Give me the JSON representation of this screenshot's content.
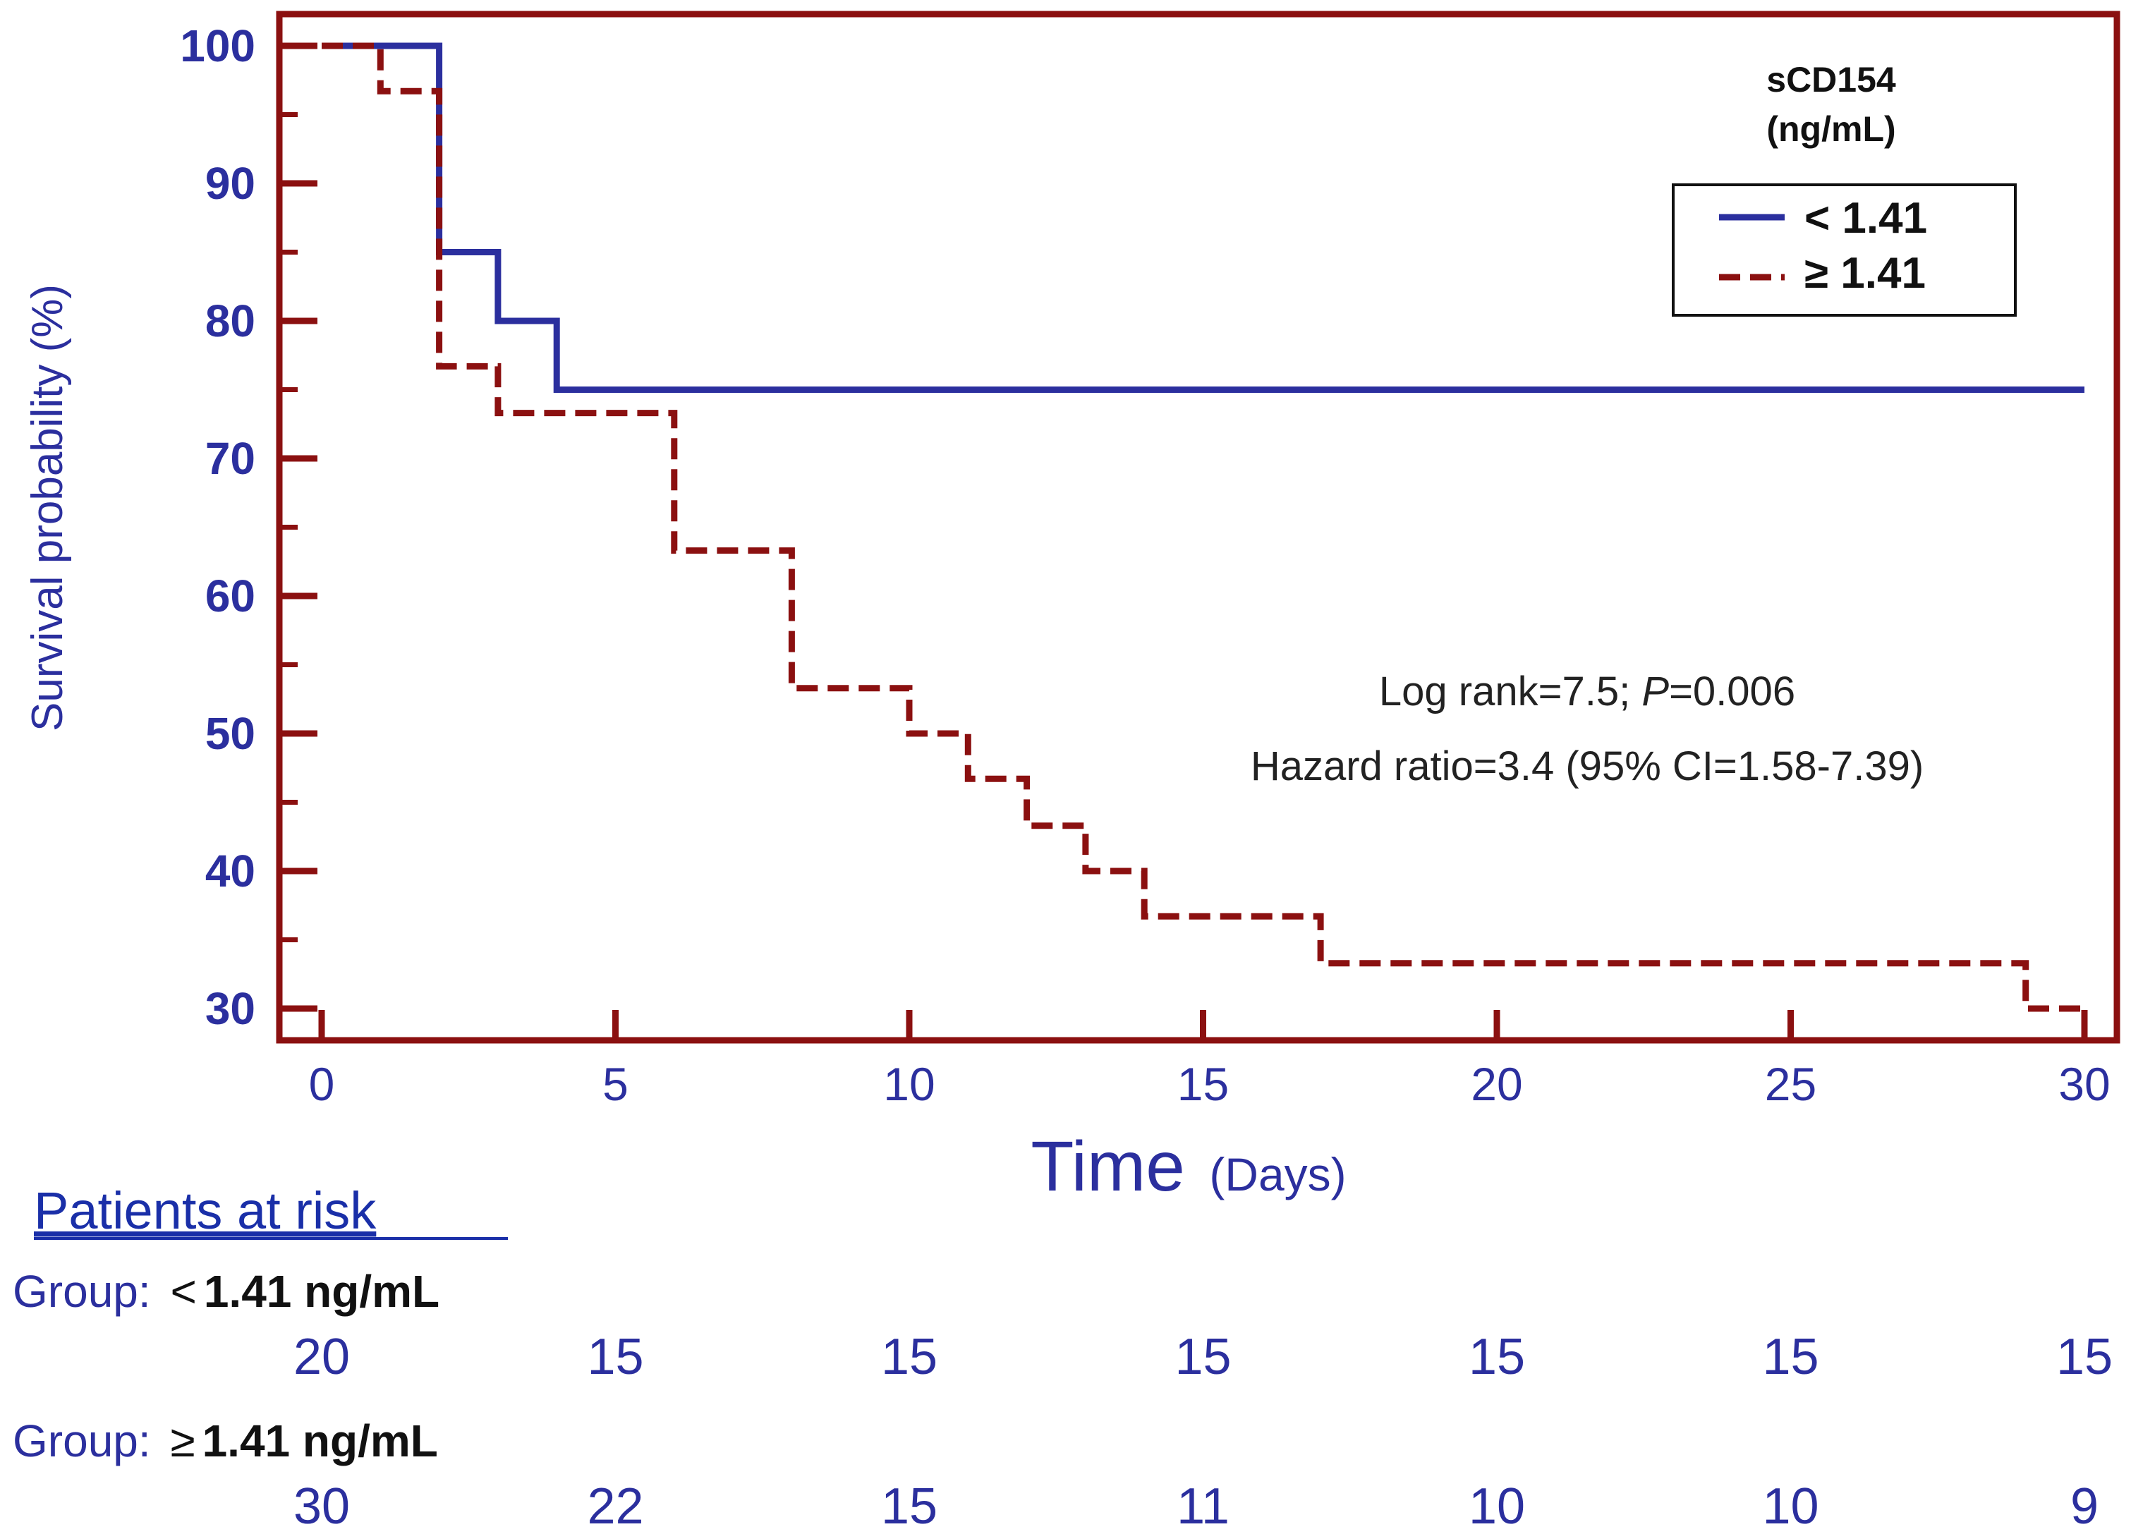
{
  "chart_data": {
    "type": "step",
    "title": "",
    "xlabel": "Time",
    "xlabel_unit": "(Days)",
    "ylabel": "Survival probability (%)",
    "xlim": [
      0,
      30
    ],
    "ylim": [
      30,
      100
    ],
    "x_ticks": [
      "0",
      "5",
      "10",
      "15",
      "20",
      "25",
      "30"
    ],
    "y_ticks": [
      "30",
      "40",
      "50",
      "60",
      "70",
      "80",
      "90",
      "100"
    ],
    "legend": {
      "title_line1": "sCD154",
      "title_line2": "(ng/mL)",
      "position": "top-right"
    },
    "series": [
      {
        "name": "< 1.41",
        "color": "#2b2f9e",
        "style": "solid",
        "points": [
          [
            0,
            100
          ],
          [
            2,
            100
          ],
          [
            2,
            85
          ],
          [
            3,
            85
          ],
          [
            3,
            80
          ],
          [
            4,
            80
          ],
          [
            4,
            75
          ],
          [
            30,
            75
          ]
        ]
      },
      {
        "name": "≥ 1.41",
        "color": "#8b1010",
        "style": "dashed",
        "points": [
          [
            0,
            100
          ],
          [
            1,
            100
          ],
          [
            1,
            96.7
          ],
          [
            2,
            96.7
          ],
          [
            2,
            76.7
          ],
          [
            3,
            76.7
          ],
          [
            3,
            73.3
          ],
          [
            6,
            73.3
          ],
          [
            6,
            63.3
          ],
          [
            8,
            63.3
          ],
          [
            8,
            53.3
          ],
          [
            10,
            53.3
          ],
          [
            10,
            50
          ],
          [
            11,
            50
          ],
          [
            11,
            46.7
          ],
          [
            12,
            46.7
          ],
          [
            12,
            43.3
          ],
          [
            13,
            43.3
          ],
          [
            13,
            40
          ],
          [
            14,
            40
          ],
          [
            14,
            36.7
          ],
          [
            17,
            36.7
          ],
          [
            17,
            33.3
          ],
          [
            29,
            33.3
          ],
          [
            29,
            30
          ],
          [
            30,
            30
          ]
        ]
      }
    ],
    "annotations": {
      "line1": "Log rank=7.5; ",
      "p_italic": "P",
      "line1_end": "=0.006",
      "line2": "Hazard ratio=3.4 (95% CI=1.58-7.39)"
    },
    "risk_table": {
      "heading": "Patients at risk",
      "groups": [
        {
          "label_prefix": "Group: ",
          "label_symbol": "<",
          "label_value": "1.41 ng/mL",
          "counts": [
            "20",
            "15",
            "15",
            "15",
            "15",
            "15",
            "15"
          ]
        },
        {
          "label_prefix": "Group: ",
          "label_symbol": "≥",
          "label_value": "1.41 ng/mL",
          "counts": [
            "30",
            "22",
            "15",
            "11",
            "10",
            "10",
            "9"
          ]
        }
      ]
    },
    "colors": {
      "blue": "#2b2f9e",
      "red": "#8b1010",
      "black": "#111111"
    }
  }
}
